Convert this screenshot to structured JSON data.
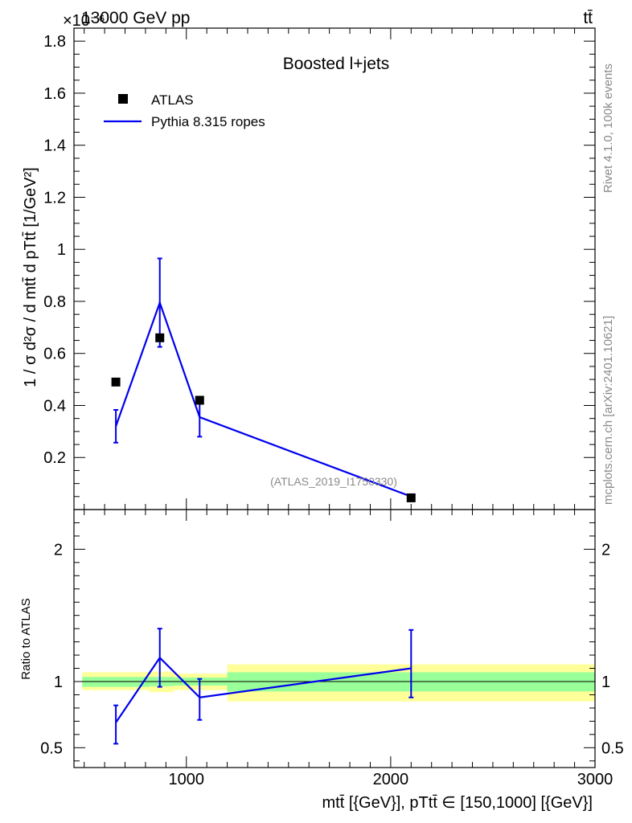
{
  "header": {
    "left_title": "13000 GeV pp",
    "exponent_label": "×10⁻⁶",
    "right_title": "tt̄"
  },
  "side_labels": {
    "rivet": "Rivet 4.1.0,  100k events",
    "mcplots": "mcplots.cern.ch [arXiv:2401.10621]"
  },
  "chart_data": [
    {
      "type": "line",
      "title": "Boosted l+jets",
      "watermark": "(ATLAS_2019_I1750330)",
      "xlabel": "mtt̄ [{GeV}], pTtt̄ ∈ [150,1000] [{GeV}]",
      "ylabel": "1 / σ d²σ / d mtt̄ d pTtt̄ [1/GeV²]",
      "ylabel_multiplier": "×10⁻⁶",
      "xlim": [
        450,
        3000
      ],
      "ylim": [
        0,
        1.85
      ],
      "xticks": [
        "1000",
        "2000",
        "3000"
      ],
      "yticks": [
        "0.2",
        "0.4",
        "0.6",
        "0.8",
        "1",
        "1.2",
        "1.4",
        "1.6",
        "1.8"
      ],
      "bin_edges": [
        490,
        820,
        940,
        1200,
        3000
      ],
      "legend": [
        "ATLAS",
        "Pythia 8.315 ropes"
      ],
      "legend_position": "top-left",
      "series": [
        {
          "name": "ATLAS",
          "style": "markers",
          "x": [
            655,
            870,
            1065,
            2100
          ],
          "y": [
            0.49,
            0.66,
            0.42,
            0.045
          ]
        },
        {
          "name": "Pythia 8.315 ropes",
          "style": "line",
          "color": "#0000ee",
          "x": [
            655,
            870,
            1065,
            2100
          ],
          "y": [
            0.32,
            0.795,
            0.355,
            0.05
          ],
          "err": [
            0.063,
            0.17,
            0.075,
            0.008
          ]
        }
      ]
    },
    {
      "type": "line",
      "ylabel": "Ratio to ATLAS",
      "xlim": [
        450,
        3000
      ],
      "ylim": [
        0.35,
        2.3
      ],
      "yticks": [
        "0.5",
        "1",
        "2"
      ],
      "bands": {
        "edges": [
          490,
          820,
          940,
          1200,
          3000
        ],
        "yellow": [
          [
            0.935,
            1.07
          ],
          [
            0.92,
            1.075
          ],
          [
            0.935,
            1.06
          ],
          [
            0.85,
            1.13
          ]
        ],
        "green": [
          [
            0.96,
            1.035
          ],
          [
            0.965,
            1.035
          ],
          [
            0.97,
            1.03
          ],
          [
            0.925,
            1.07
          ]
        ]
      },
      "series": [
        {
          "name": "Pythia 8.315 ropes",
          "color": "#0000ee",
          "x": [
            655,
            870,
            1065,
            2100
          ],
          "y": [
            0.69,
            1.18,
            0.88,
            1.1
          ],
          "lo": [
            0.53,
            0.96,
            0.71,
            0.88
          ],
          "hi": [
            0.82,
            1.4,
            1.02,
            1.39
          ]
        }
      ]
    }
  ]
}
